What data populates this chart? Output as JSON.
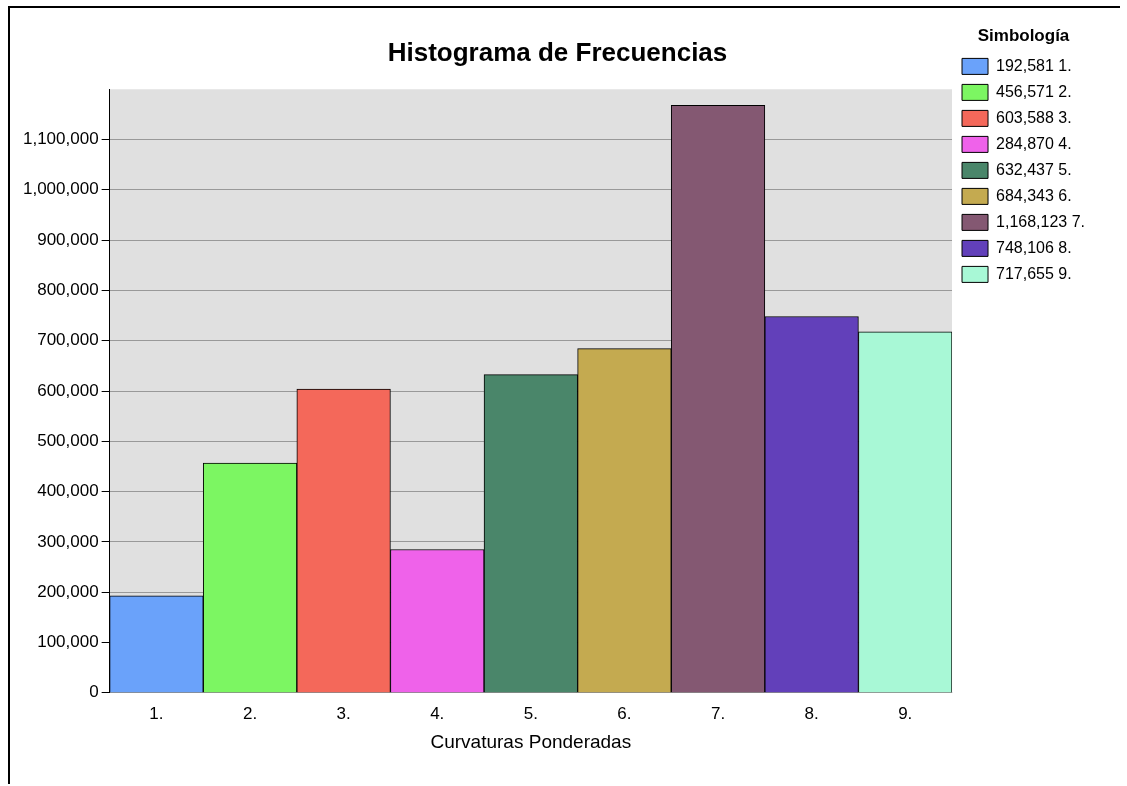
{
  "chart_data": {
    "type": "bar",
    "title": "Histograma de Frecuencias",
    "xlabel": "Curvaturas Ponderadas",
    "legend_title": "Simbología",
    "legend": "right",
    "grid": "y",
    "categories": [
      "1.",
      "2.",
      "3.",
      "4.",
      "5.",
      "6.",
      "7.",
      "8.",
      "9."
    ],
    "series": [
      {
        "name": "192,581 1.",
        "color": "#6aa2fa",
        "values": [
          192581,
          null,
          null,
          null,
          null,
          null,
          null,
          null,
          null
        ]
      },
      {
        "name": "456,571 2.",
        "color": "#7cf662",
        "values": [
          null,
          456571,
          null,
          null,
          null,
          null,
          null,
          null,
          null
        ]
      },
      {
        "name": "603,588 3.",
        "color": "#f4685a",
        "values": [
          null,
          null,
          603588,
          null,
          null,
          null,
          null,
          null,
          null
        ]
      },
      {
        "name": "284,870 4.",
        "color": "#ef62ea",
        "values": [
          null,
          null,
          null,
          284870,
          null,
          null,
          null,
          null,
          null
        ]
      },
      {
        "name": "632,437 5.",
        "color": "#4a866a",
        "values": [
          null,
          null,
          null,
          null,
          632437,
          null,
          null,
          null,
          null
        ]
      },
      {
        "name": "684,343 6.",
        "color": "#c4aa50",
        "values": [
          null,
          null,
          null,
          null,
          null,
          684343,
          null,
          null,
          null
        ]
      },
      {
        "name": "1,168,123 7.",
        "color": "#845872",
        "values": [
          null,
          null,
          null,
          null,
          null,
          null,
          1168123,
          null,
          null
        ]
      },
      {
        "name": "748,106 8.",
        "color": "#6240ba",
        "values": [
          null,
          null,
          null,
          null,
          null,
          null,
          null,
          748106,
          null
        ]
      },
      {
        "name": "717,655 9.",
        "color": "#a8f8d6",
        "values": [
          null,
          null,
          null,
          null,
          null,
          null,
          null,
          null,
          717655
        ]
      }
    ],
    "ylim": [
      0,
      1200000
    ],
    "yticks": [
      0,
      {
        "value": 100000,
        "label": "100,000"
      },
      {
        "value": 200000,
        "label": "200,000"
      },
      {
        "value": 300000,
        "label": "300,000"
      },
      {
        "value": 400000,
        "label": "400,000"
      },
      {
        "value": 500000,
        "label": "500,000"
      },
      {
        "value": 600000,
        "label": "600,000"
      },
      {
        "value": 700000,
        "label": "700,000"
      },
      {
        "value": 800000,
        "label": "800,000"
      },
      {
        "value": 900000,
        "label": "900,000"
      },
      {
        "value": 1000000,
        "label": "1,000,000"
      },
      {
        "value": 1100000,
        "label": "1,100,000"
      }
    ]
  }
}
